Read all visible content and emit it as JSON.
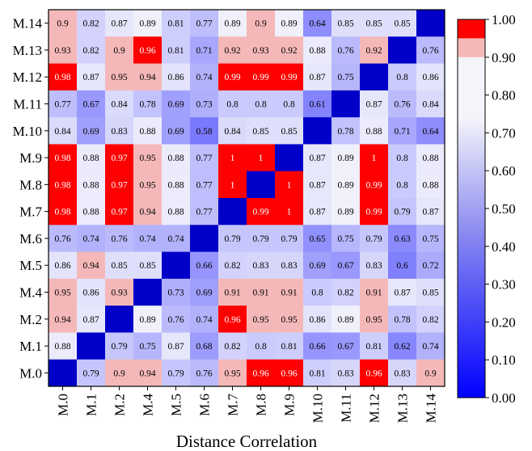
{
  "chart_data": {
    "type": "heatmap",
    "title": "",
    "xlabel": "Distance Correlation",
    "ylabel": "",
    "x_categories": [
      "M.0",
      "M.1",
      "M.2",
      "M.4",
      "M.5",
      "M.6",
      "M.7",
      "M.8",
      "M.9",
      "M.10",
      "M.11",
      "M.12",
      "M.13",
      "M.14"
    ],
    "y_categories": [
      "M.14",
      "M.13",
      "M.12",
      "M.11",
      "M.10",
      "M.9",
      "M.8",
      "M.7",
      "M.6",
      "M.5",
      "M.4",
      "M.2",
      "M.1",
      "M.0"
    ],
    "values": [
      [
        "0.9",
        "0.82",
        "0.87",
        "0.89",
        "0.81",
        "0.77",
        "0.89",
        "0.9",
        "0.89",
        "0.64",
        "0.85",
        "0.85",
        "0.85",
        null
      ],
      [
        "0.93",
        "0.82",
        "0.9",
        "0.96",
        "0.81",
        "0.71",
        "0.92",
        "0.93",
        "0.92",
        "0.88",
        "0.76",
        "0.92",
        null,
        "0.76"
      ],
      [
        "0.98",
        "0.87",
        "0.95",
        "0.94",
        "0.86",
        "0.74",
        "0.99",
        "0.99",
        "0.99",
        "0.87",
        "0.75",
        null,
        "0.8",
        "0.86"
      ],
      [
        "0.77",
        "0.67",
        "0.84",
        "0.78",
        "0.69",
        "0.73",
        "0.8",
        "0.8",
        "0.8",
        "0.61",
        null,
        "0.87",
        "0.76",
        "0.84"
      ],
      [
        "0.84",
        "0.69",
        "0.83",
        "0.88",
        "0.69",
        "0.58",
        "0.84",
        "0.85",
        "0.85",
        null,
        "0.78",
        "0.88",
        "0.71",
        "0.64"
      ],
      [
        "0.98",
        "0.88",
        "0.97",
        "0.95",
        "0.88",
        "0.77",
        "1",
        "1",
        null,
        "0.87",
        "0.89",
        "1",
        "0.8",
        "0.88"
      ],
      [
        "0.98",
        "0.88",
        "0.97",
        "0.95",
        "0.88",
        "0.77",
        "1",
        null,
        "1",
        "0.87",
        "0.89",
        "0.99",
        "0.8",
        "0.88"
      ],
      [
        "0.98",
        "0.88",
        "0.97",
        "0.94",
        "0.88",
        "0.77",
        null,
        "0.99",
        "1",
        "0.87",
        "0.89",
        "0.99",
        "0.79",
        "0.87"
      ],
      [
        "0.76",
        "0.74",
        "0.76",
        "0.74",
        "0.74",
        null,
        "0.79",
        "0.79",
        "0.79",
        "0.65",
        "0.75",
        "0.79",
        "0.63",
        "0.75"
      ],
      [
        "0.86",
        "0.94",
        "0.85",
        "0.85",
        null,
        "0.66",
        "0.82",
        "0.83",
        "0.83",
        "0.69",
        "0.67",
        "0.83",
        "0.6",
        "0.72"
      ],
      [
        "0.95",
        "0.86",
        "0.93",
        null,
        "0.73",
        "0.69",
        "0.91",
        "0.91",
        "0.91",
        "0.8",
        "0.82",
        "0.91",
        "0.87",
        "0.85"
      ],
      [
        "0.94",
        "0.87",
        null,
        "0.89",
        "0.76",
        "0.74",
        "0.96",
        "0.95",
        "0.95",
        "0.86",
        "0.89",
        "0.95",
        "0.78",
        "0.82"
      ],
      [
        "0.88",
        null,
        "0.79",
        "0.75",
        "0.87",
        "0.68",
        "0.82",
        "0.8",
        "0.81",
        "0.66",
        "0.67",
        "0.81",
        "0.62",
        "0.74"
      ],
      [
        null,
        "0.79",
        "0.9",
        "0.94",
        "0.79",
        "0.76",
        "0.95",
        "0.96",
        "0.96",
        "0.81",
        "0.83",
        "0.96",
        "0.83",
        "0.9"
      ]
    ],
    "colorbar": {
      "ticks": [
        "1.00",
        "0.90",
        "0.80",
        "0.70",
        "0.60",
        "0.50",
        "0.40",
        "0.30",
        "0.20",
        "0.10",
        "0.00"
      ],
      "range": [
        0,
        1
      ],
      "color_high": "#ff0000",
      "color_band": "#f5b8b8",
      "color_mid": "#f4f4fb",
      "color_low": "#0000ff",
      "color_diagonal": "#0000c8"
    }
  }
}
